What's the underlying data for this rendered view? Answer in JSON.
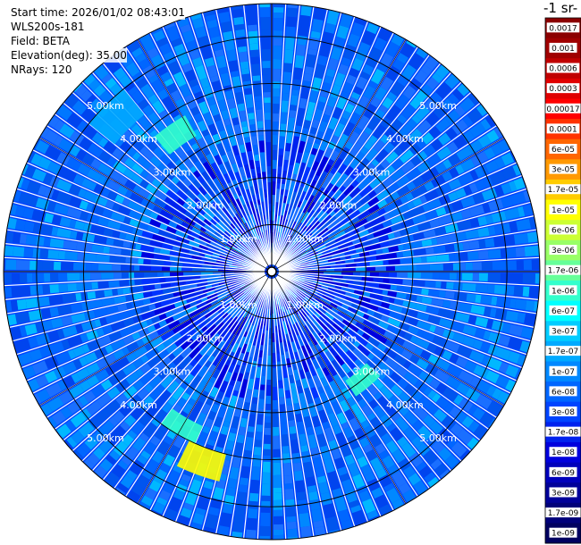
{
  "header": {
    "start_time": "Start time: 2026/01/02 08:43:01",
    "instrument": "WLS200s-181",
    "field": "Field: BETA",
    "elevation": "Elevation(deg): 35.00",
    "nrays": "NRays: 120"
  },
  "colorbar": {
    "unit_label": "-1 sr-",
    "tick_labels": [
      "0.0017",
      "0.001",
      "0.0006",
      "0.0003",
      "0.00017",
      "0.0001",
      "6e-05",
      "3e-05",
      "1.7e-05",
      "1e-05",
      "6e-06",
      "3e-06",
      "1.7e-06",
      "1e-06",
      "6e-07",
      "3e-07",
      "1.7e-07",
      "1e-07",
      "6e-08",
      "3e-08",
      "1.7e-08",
      "1e-08",
      "6e-09",
      "3e-09",
      "1.7e-09",
      "1e-09"
    ],
    "colors": [
      "#8b0000",
      "#a00000",
      "#c00000",
      "#e00000",
      "#ff0000",
      "#ff3300",
      "#ff6600",
      "#ff9900",
      "#ffcc00",
      "#ffff00",
      "#ccff33",
      "#99ff66",
      "#66ff99",
      "#33ffcc",
      "#00ffff",
      "#00ccff",
      "#00aaff",
      "#0088ff",
      "#0066ff",
      "#0044ff",
      "#0022ee",
      "#0000dd",
      "#0000bb",
      "#000099",
      "#00007a",
      "#000060"
    ]
  },
  "chart_data": {
    "type": "heatmap",
    "projection": "polar PPI scan",
    "field": "BETA",
    "elevation_deg": 35.0,
    "n_rays": 120,
    "range_rings_km": [
      1,
      2,
      3,
      4,
      5
    ],
    "range_ring_labels": [
      "1.00km",
      "2.00km",
      "3.00km",
      "4.00km",
      "5.00km"
    ],
    "max_range_km": 5.7,
    "dominant_value": "3e-08",
    "colorscale": "jet",
    "enhanced_features": [
      {
        "bearing_deg": 200,
        "range_km": [
          4.0,
          4.6
        ],
        "value": "1e-05"
      },
      {
        "bearing_deg": 210,
        "range_km": [
          3.6,
          4.0
        ],
        "value": "1e-06"
      },
      {
        "bearing_deg": 325,
        "range_km": [
          3.3,
          3.8
        ],
        "value": "1e-06"
      },
      {
        "bearing_deg": 315,
        "range_km": [
          4.3,
          5.0
        ],
        "value": "1.7e-07"
      },
      {
        "bearing_deg": 140,
        "range_km": [
          2.8,
          3.2
        ],
        "value": "1e-06"
      }
    ]
  }
}
